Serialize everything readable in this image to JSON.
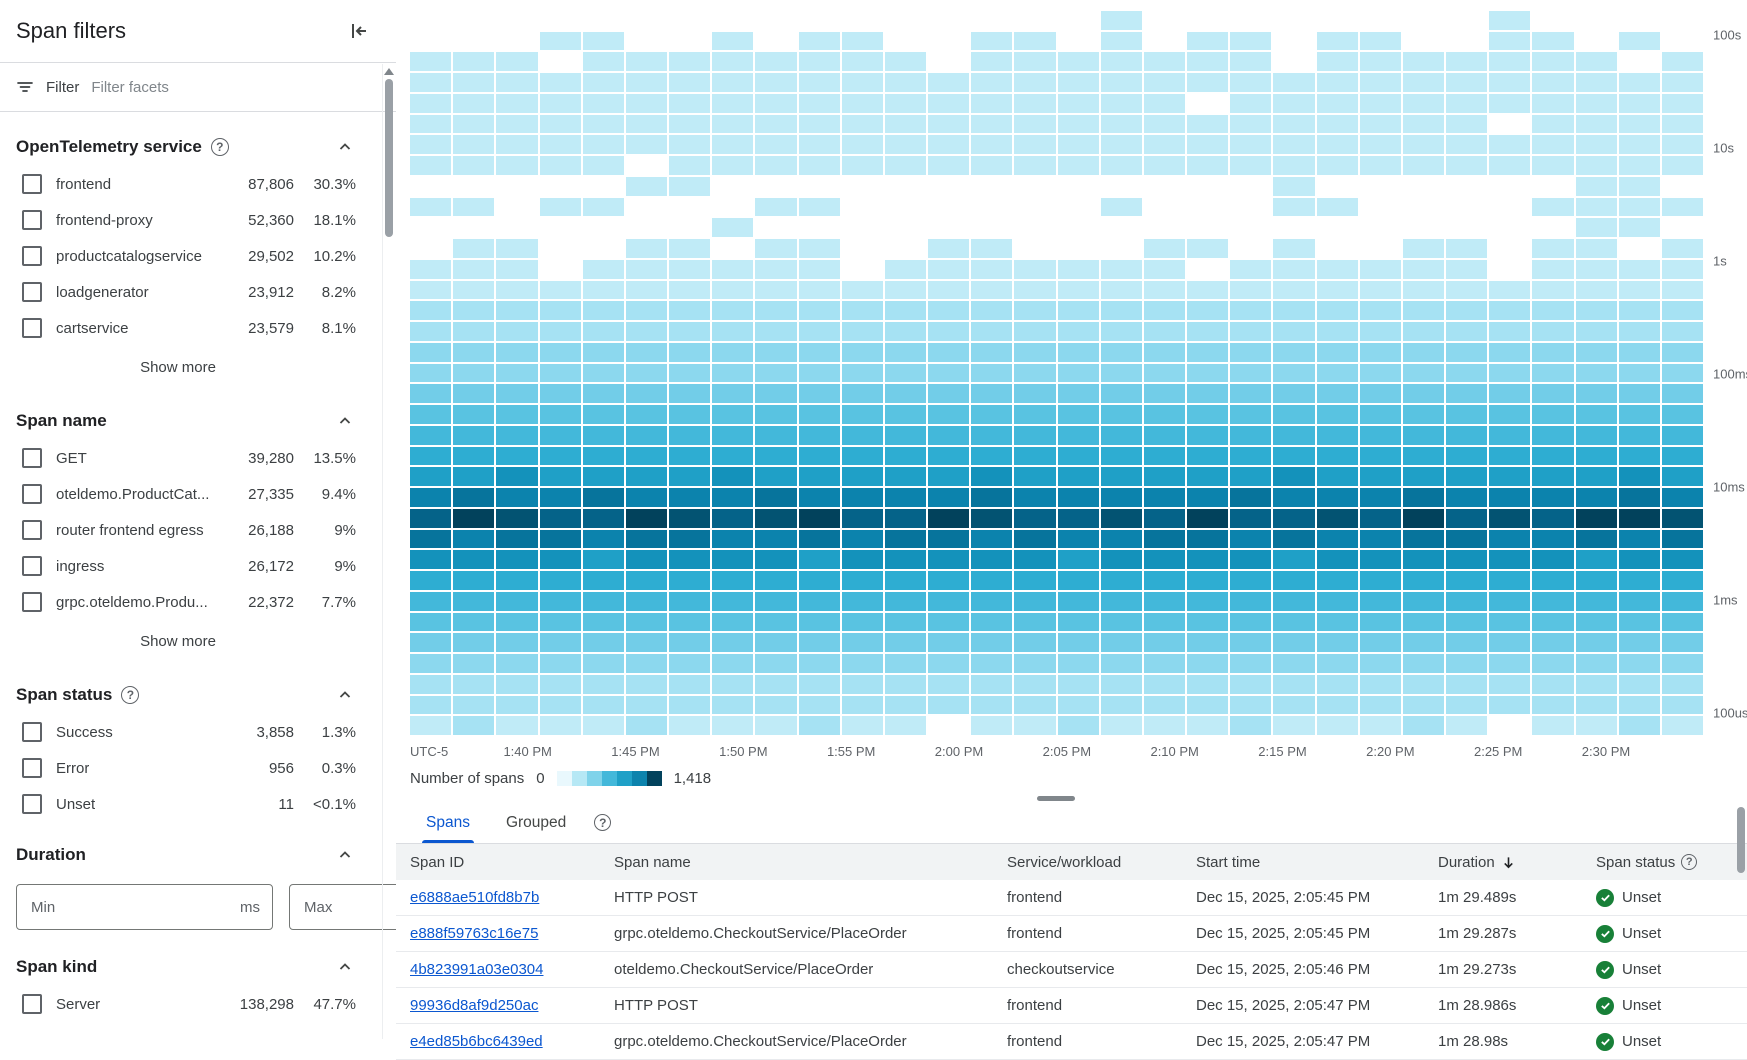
{
  "icons": {
    "help": "?"
  },
  "colors": {
    "accent": "#0b57d0",
    "link": "#0b57d0",
    "success_green": "#188038",
    "tab_underline": "#0b57d0"
  },
  "sidebar": {
    "title": "Span filters",
    "filter": {
      "label": "Filter",
      "placeholder": "Filter facets"
    },
    "show_more_label": "Show more",
    "sections": [
      {
        "title": "OpenTelemetry service",
        "help": true,
        "show_more": true,
        "items": [
          {
            "label": "frontend",
            "count": "87,806",
            "pct": "30.3%"
          },
          {
            "label": "frontend-proxy",
            "count": "52,360",
            "pct": "18.1%"
          },
          {
            "label": "productcatalogservice",
            "count": "29,502",
            "pct": "10.2%"
          },
          {
            "label": "loadgenerator",
            "count": "23,912",
            "pct": "8.2%"
          },
          {
            "label": "cartservice",
            "count": "23,579",
            "pct": "8.1%"
          }
        ]
      },
      {
        "title": "Span name",
        "help": false,
        "show_more": true,
        "items": [
          {
            "label": "GET",
            "count": "39,280",
            "pct": "13.5%"
          },
          {
            "label": "oteldemo.ProductCat...",
            "count": "27,335",
            "pct": "9.4%"
          },
          {
            "label": "router frontend egress",
            "count": "26,188",
            "pct": "9%"
          },
          {
            "label": "ingress",
            "count": "26,172",
            "pct": "9%"
          },
          {
            "label": "grpc.oteldemo.Produ...",
            "count": "22,372",
            "pct": "7.7%"
          }
        ]
      },
      {
        "title": "Span status",
        "help": true,
        "show_more": false,
        "items": [
          {
            "label": "Success",
            "count": "3,858",
            "pct": "1.3%"
          },
          {
            "label": "Error",
            "count": "956",
            "pct": "0.3%"
          },
          {
            "label": "Unset",
            "count": "11",
            "pct": "<0.1%"
          }
        ]
      },
      {
        "title": "Duration",
        "help": false,
        "type": "range",
        "min_placeholder": "Min",
        "max_placeholder": "Max",
        "unit": "ms"
      },
      {
        "title": "Span kind",
        "help": false,
        "show_more": false,
        "items": [
          {
            "label": "Server",
            "count": "138,298",
            "pct": "47.7%"
          }
        ]
      }
    ]
  },
  "chart_data": {
    "type": "heatmap",
    "x_timezone_label": "UTC-5",
    "x_ticks": [
      "1:40 PM",
      "1:45 PM",
      "1:50 PM",
      "1:55 PM",
      "2:00 PM",
      "2:05 PM",
      "2:10 PM",
      "2:15 PM",
      "2:20 PM",
      "2:25 PM",
      "2:30 PM"
    ],
    "y_ticks": [
      "100s",
      "10s",
      "1s",
      "100ms",
      "10ms",
      "1ms",
      "100us"
    ],
    "legend": {
      "label": "Number of spans",
      "min": "0",
      "max": "1,418"
    },
    "legend_gradient": [
      "#e9f8fd",
      "#b6e8f5",
      "#7fd3ea",
      "#43b8da",
      "#1fa0c7",
      "#0c83ad",
      "#02425c"
    ],
    "grid": {
      "columns": 30,
      "rows": 35
    },
    "palette": [
      "#d8f3fb",
      "#c0ebf7",
      "#a6e2f3",
      "#8cd8ee",
      "#72cde8",
      "#59c3e1",
      "#43b8da",
      "#2eadd2",
      "#1fa0c7",
      "#1492bb",
      "#0c83ad",
      "#07749c",
      "#056389",
      "#035372",
      "#02425c"
    ],
    "cells": [
      "000000000000000020000000020000",
      "000220020220022020220220022020",
      "222022222222022222220222222202",
      "222222222222222222222222222222",
      "222222222222222222022222222222",
      "222222222222222222222222202222",
      "222222222222222222222222222222",
      "222220222222222222222222222222",
      "000002200000000000002000000220",
      "220220002200000020002200002222",
      "000000020000000000000000000220",
      "022002202200220002202002202202",
      "222022222202222222022222202222",
      "222222222222222222222222222222",
      "333333333333333333333333333333",
      "333333333333333333333333333333",
      "444444444444444444444444444444",
      "444444444444444444444444444444",
      "555555555555555555555555555555",
      "666666666666666666666666666666",
      "777777777777777777777777777777",
      "888888888888888888888888888888",
      "99a9999a99999a999999a9999999a9",
      "bcbbcbbbcbbbbcbbbbbcbbbcbbbbcb",
      "dfeddfedefddfeddedfddedfdedffe",
      "cbccbccbbcbccbcbbccbcbbccbbcbc",
      "aaaa9aaaa9aaaaa9aaaa9aaaaaa9aa",
      "888888888888888888888888888888",
      "777777777777777777777777777777",
      "666666666666666666666666666666",
      "555555555555555555555555555555",
      "444444444444444444444444444444",
      "333333333333333333333333333333",
      "333333333333333333333333333333",
      "232223222322022322232223202232"
    ]
  },
  "bottom": {
    "tabs": [
      {
        "label": "Spans",
        "active": true
      },
      {
        "label": "Grouped",
        "active": false
      }
    ],
    "table": {
      "columns": [
        "Span ID",
        "Span name",
        "Service/workload",
        "Start time",
        "Duration",
        "Span status"
      ],
      "sorted_by": "Duration",
      "rows": [
        {
          "span_id": "e6888ae510fd8b7b",
          "span_name": "HTTP POST",
          "service": "frontend",
          "start_time": "Dec 15, 2025, 2:05:45 PM",
          "duration": "1m 29.489s",
          "status": "Unset"
        },
        {
          "span_id": "e888f59763c16e75",
          "span_name": "grpc.oteldemo.CheckoutService/PlaceOrder",
          "service": "frontend",
          "start_time": "Dec 15, 2025, 2:05:45 PM",
          "duration": "1m 29.287s",
          "status": "Unset"
        },
        {
          "span_id": "4b823991a03e0304",
          "span_name": "oteldemo.CheckoutService/PlaceOrder",
          "service": "checkoutservice",
          "start_time": "Dec 15, 2025, 2:05:46 PM",
          "duration": "1m 29.273s",
          "status": "Unset"
        },
        {
          "span_id": "99936d8af9d250ac",
          "span_name": "HTTP POST",
          "service": "frontend",
          "start_time": "Dec 15, 2025, 2:05:47 PM",
          "duration": "1m 28.986s",
          "status": "Unset"
        },
        {
          "span_id": "e4ed85b6bc6439ed",
          "span_name": "grpc.oteldemo.CheckoutService/PlaceOrder",
          "service": "frontend",
          "start_time": "Dec 15, 2025, 2:05:47 PM",
          "duration": "1m 28.98s",
          "status": "Unset"
        }
      ]
    }
  }
}
